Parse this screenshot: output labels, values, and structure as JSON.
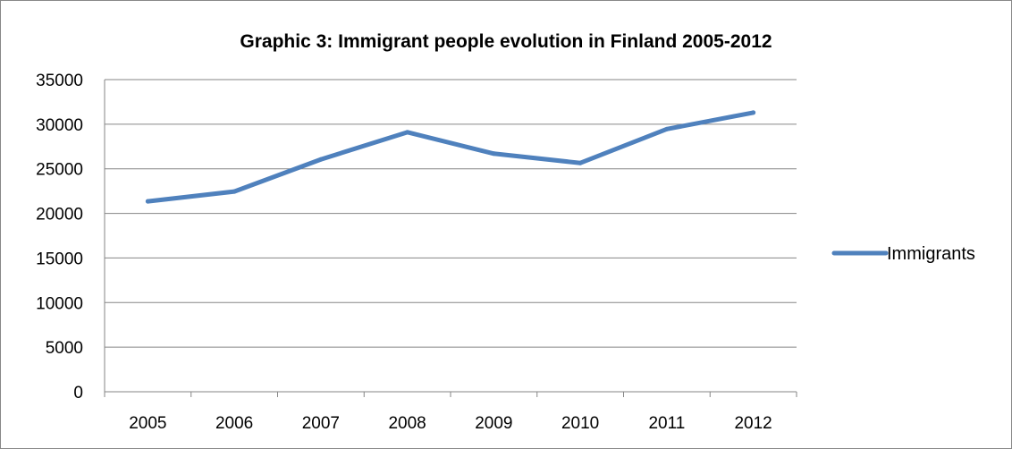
{
  "chart_data": {
    "type": "line",
    "title": "Graphic 3: Immigrant people evolution in Finland 2005-2012",
    "xlabel": "",
    "ylabel": "",
    "categories": [
      "2005",
      "2006",
      "2007",
      "2008",
      "2009",
      "2010",
      "2011",
      "2012"
    ],
    "series": [
      {
        "name": "Immigrants",
        "values": [
          21350,
          22450,
          26050,
          29100,
          26700,
          25650,
          29450,
          31300
        ],
        "color": "#4F81BD"
      }
    ],
    "ylim": [
      0,
      35000
    ],
    "yticks": [
      "0",
      "5000",
      "10000",
      "15000",
      "20000",
      "25000",
      "30000",
      "35000"
    ],
    "grid": "horizontal",
    "legend": "right",
    "gridColor": "#868686"
  }
}
